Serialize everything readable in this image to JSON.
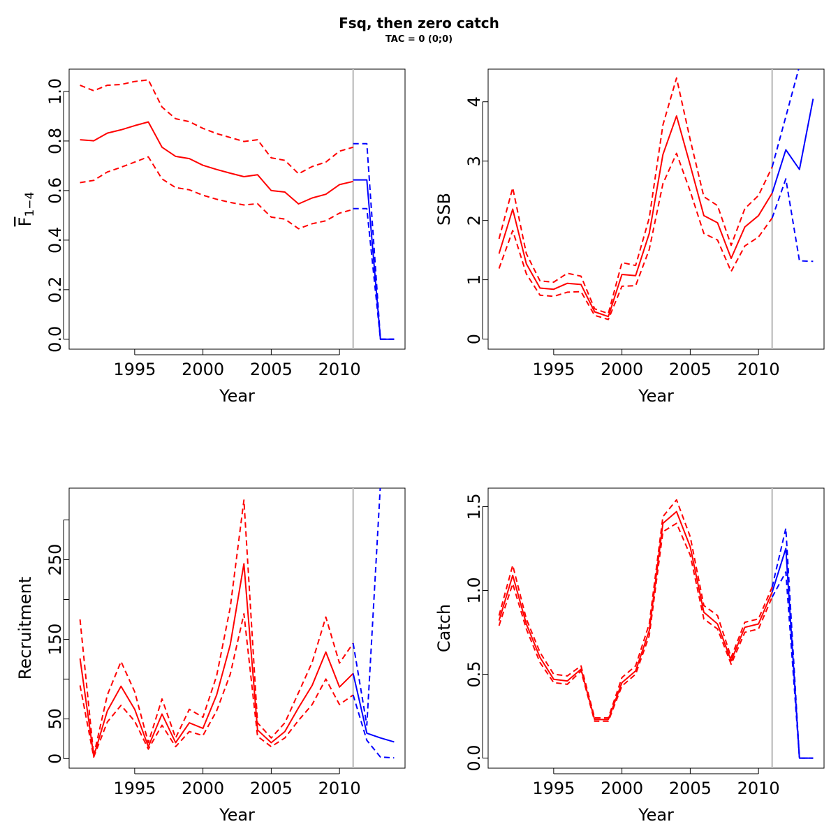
{
  "figure": {
    "title": "Fsq, then zero catch",
    "subtitle": "TAC = 0 (0;0)"
  },
  "colors": {
    "history": "#ff0000",
    "forecast": "#0000ff",
    "divider": "#bebebe"
  },
  "chart_data": [
    {
      "id": "fbar",
      "type": "line",
      "title": "",
      "xlabel": "Year",
      "ylabel": "F",
      "ylabel_sub": "1−4",
      "xlim": [
        1990.2,
        2014.8
      ],
      "ylim": [
        -0.04,
        1.09
      ],
      "xticks": [
        1995,
        2000,
        2005,
        2010
      ],
      "yticks": [
        0.0,
        0.2,
        0.4,
        0.6,
        0.8,
        1.0
      ],
      "ytick_labels": [
        "0.0",
        "0.2",
        "0.4",
        "0.6",
        "0.8",
        "1.0"
      ],
      "divider_x": 2011,
      "series": [
        {
          "role": "history",
          "style": "solid",
          "x": [
            1991,
            1992,
            1993,
            1994,
            1995,
            1996,
            1997,
            1998,
            1999,
            2000,
            2001,
            2002,
            2003,
            2004,
            2005,
            2006,
            2007,
            2008,
            2009,
            2010,
            2011
          ],
          "values": [
            0.805,
            0.801,
            0.832,
            0.845,
            0.862,
            0.877,
            0.775,
            0.738,
            0.729,
            0.702,
            0.685,
            0.67,
            0.656,
            0.664,
            0.6,
            0.594,
            0.546,
            0.57,
            0.585,
            0.624,
            0.637
          ]
        },
        {
          "role": "history",
          "style": "dashed",
          "x": [
            1991,
            1992,
            1993,
            1994,
            1995,
            1996,
            1997,
            1998,
            1999,
            2000,
            2001,
            2002,
            2003,
            2004,
            2005,
            2006,
            2007,
            2008,
            2009,
            2010,
            2011
          ],
          "values": [
            1.025,
            1.003,
            1.025,
            1.028,
            1.04,
            1.047,
            0.937,
            0.89,
            0.878,
            0.851,
            0.83,
            0.814,
            0.798,
            0.805,
            0.732,
            0.722,
            0.668,
            0.697,
            0.715,
            0.759,
            0.775
          ]
        },
        {
          "role": "history",
          "style": "dashed",
          "x": [
            1991,
            1992,
            1993,
            1994,
            1995,
            1996,
            1997,
            1998,
            1999,
            2000,
            2001,
            2002,
            2003,
            2004,
            2005,
            2006,
            2007,
            2008,
            2009,
            2010,
            2011
          ],
          "values": [
            0.632,
            0.641,
            0.675,
            0.694,
            0.715,
            0.736,
            0.647,
            0.612,
            0.603,
            0.581,
            0.565,
            0.552,
            0.542,
            0.547,
            0.493,
            0.485,
            0.446,
            0.466,
            0.478,
            0.509,
            0.524
          ]
        },
        {
          "role": "forecast",
          "style": "solid",
          "x": [
            2011,
            2012,
            2013,
            2014
          ],
          "values": [
            0.643,
            0.643,
            0.0,
            0.0
          ]
        },
        {
          "role": "forecast",
          "style": "dashed",
          "x": [
            2011,
            2012,
            2013,
            2014
          ],
          "values": [
            0.789,
            0.789,
            0.0,
            0.0
          ]
        },
        {
          "role": "forecast",
          "style": "dashed",
          "x": [
            2011,
            2012,
            2013,
            2014
          ],
          "values": [
            0.527,
            0.527,
            0.0,
            0.0
          ]
        }
      ]
    },
    {
      "id": "ssb",
      "type": "line",
      "title": "",
      "xlabel": "Year",
      "ylabel": "SSB",
      "xlim": [
        1990.2,
        2014.8
      ],
      "ylim": [
        -0.17,
        4.55
      ],
      "xticks": [
        1995,
        2000,
        2005,
        2010
      ],
      "yticks": [
        0,
        1,
        2,
        3,
        4
      ],
      "ytick_labels": [
        "0",
        "1",
        "2",
        "3",
        "4"
      ],
      "divider_x": 2011,
      "series": [
        {
          "role": "history",
          "style": "solid",
          "x": [
            1991,
            1992,
            1993,
            1994,
            1995,
            1996,
            1997,
            1998,
            1999,
            2000,
            2001,
            2002,
            2003,
            2004,
            2005,
            2006,
            2007,
            2008,
            2009,
            2010,
            2011
          ],
          "values": [
            1.44,
            2.19,
            1.27,
            0.86,
            0.84,
            0.94,
            0.92,
            0.46,
            0.38,
            1.09,
            1.07,
            1.78,
            3.11,
            3.76,
            2.93,
            2.08,
            1.96,
            1.36,
            1.89,
            2.08,
            2.46
          ]
        },
        {
          "role": "history",
          "style": "dashed",
          "x": [
            1991,
            1992,
            1993,
            1994,
            1995,
            1996,
            1997,
            1998,
            1999,
            2000,
            2001,
            2002,
            2003,
            2004,
            2005,
            2006,
            2007,
            2008,
            2009,
            2010,
            2011
          ],
          "values": [
            1.69,
            2.55,
            1.44,
            0.98,
            0.96,
            1.11,
            1.06,
            0.51,
            0.43,
            1.29,
            1.24,
            2.04,
            3.61,
            4.4,
            3.36,
            2.4,
            2.25,
            1.58,
            2.2,
            2.42,
            2.9
          ]
        },
        {
          "role": "history",
          "style": "dashed",
          "x": [
            1991,
            1992,
            1993,
            1994,
            1995,
            1996,
            1997,
            1998,
            1999,
            2000,
            2001,
            2002,
            2003,
            2004,
            2005,
            2006,
            2007,
            2008,
            2009,
            2010,
            2011
          ],
          "values": [
            1.19,
            1.83,
            1.1,
            0.74,
            0.72,
            0.79,
            0.8,
            0.4,
            0.33,
            0.89,
            0.9,
            1.51,
            2.62,
            3.13,
            2.49,
            1.78,
            1.67,
            1.14,
            1.57,
            1.72,
            2.04
          ]
        },
        {
          "role": "forecast",
          "style": "solid",
          "x": [
            2011,
            2012,
            2013,
            2014
          ],
          "values": [
            2.46,
            3.19,
            2.86,
            4.05
          ]
        },
        {
          "role": "forecast",
          "style": "dashed",
          "x": [
            2011,
            2012,
            2013,
            2014
          ],
          "values": [
            2.9,
            3.75,
            4.6,
            4.6
          ]
        },
        {
          "role": "forecast",
          "style": "dashed",
          "x": [
            2011,
            2012,
            2013,
            2014
          ],
          "values": [
            2.04,
            2.7,
            1.32,
            1.31
          ]
        }
      ]
    },
    {
      "id": "recruitment",
      "type": "line",
      "title": "",
      "xlabel": "Year",
      "ylabel": "Recruitment",
      "xlim": [
        1990.2,
        2014.8
      ],
      "ylim": [
        -12,
        340
      ],
      "xticks": [
        1995,
        2000,
        2005,
        2010
      ],
      "yticks": [
        0,
        50,
        100,
        150,
        200,
        250,
        300
      ],
      "ytick_labels": [
        "0",
        "50",
        "",
        "150",
        "",
        "250",
        ""
      ],
      "divider_x": 2011,
      "series": [
        {
          "role": "history",
          "style": "solid",
          "x": [
            1991,
            1992,
            1993,
            1994,
            1995,
            1996,
            1997,
            1998,
            1999,
            2000,
            2001,
            2002,
            2003,
            2004,
            2005,
            2006,
            2007,
            2008,
            2009,
            2010,
            2011
          ],
          "values": [
            126,
            3,
            60,
            91,
            62,
            15,
            56,
            20,
            45,
            38,
            80,
            143,
            245,
            36,
            20,
            34,
            64,
            92,
            134,
            90,
            107
          ]
        },
        {
          "role": "history",
          "style": "dashed",
          "x": [
            1991,
            1992,
            1993,
            1994,
            1995,
            1996,
            1997,
            1998,
            1999,
            2000,
            2001,
            2002,
            2003,
            2004,
            2005,
            2006,
            2007,
            2008,
            2009,
            2010,
            2011
          ],
          "values": [
            175,
            4,
            80,
            122,
            84,
            20,
            75,
            26,
            62,
            52,
            104,
            190,
            325,
            45,
            26,
            45,
            83,
            121,
            178,
            120,
            145
          ]
        },
        {
          "role": "history",
          "style": "dashed",
          "x": [
            1991,
            1992,
            1993,
            1994,
            1995,
            1996,
            1997,
            1998,
            1999,
            2000,
            2001,
            2002,
            2003,
            2004,
            2005,
            2006,
            2007,
            2008,
            2009,
            2010,
            2011
          ],
          "values": [
            92,
            2,
            46,
            67,
            47,
            12,
            42,
            15,
            34,
            29,
            60,
            106,
            182,
            28,
            15,
            26,
            48,
            68,
            100,
            68,
            80
          ]
        },
        {
          "role": "forecast",
          "style": "solid",
          "x": [
            2011,
            2012,
            2013,
            2014
          ],
          "values": [
            107,
            32,
            26,
            21
          ]
        },
        {
          "role": "forecast",
          "style": "dashed",
          "x": [
            2011,
            2012,
            2013,
            2014
          ],
          "values": [
            145,
            42,
            345,
            345
          ]
        },
        {
          "role": "forecast",
          "style": "dashed",
          "x": [
            2011,
            2012,
            2013,
            2014
          ],
          "values": [
            80,
            23,
            2,
            1
          ]
        }
      ]
    },
    {
      "id": "catch",
      "type": "line",
      "title": "",
      "xlabel": "Year",
      "ylabel": "Catch",
      "xlim": [
        1990.2,
        2014.8
      ],
      "ylim": [
        -0.06,
        1.61
      ],
      "xticks": [
        1995,
        2000,
        2005,
        2010
      ],
      "yticks": [
        0.0,
        0.5,
        1.0,
        1.5
      ],
      "ytick_labels": [
        "0.0",
        "0.5",
        "1.0",
        "1.5"
      ],
      "divider_x": 2011,
      "series": [
        {
          "role": "history",
          "style": "solid",
          "x": [
            1991,
            1992,
            1993,
            1994,
            1995,
            1996,
            1997,
            1998,
            1999,
            2000,
            2001,
            2002,
            2003,
            2004,
            2005,
            2006,
            2007,
            2008,
            2009,
            2010,
            2011
          ],
          "values": [
            0.82,
            1.09,
            0.8,
            0.6,
            0.47,
            0.46,
            0.53,
            0.23,
            0.23,
            0.45,
            0.52,
            0.76,
            1.4,
            1.47,
            1.26,
            0.87,
            0.8,
            0.58,
            0.78,
            0.8,
            0.99
          ]
        },
        {
          "role": "history",
          "style": "dashed",
          "x": [
            1991,
            1992,
            1993,
            1994,
            1995,
            1996,
            1997,
            1998,
            1999,
            2000,
            2001,
            2002,
            2003,
            2004,
            2005,
            2006,
            2007,
            2008,
            2009,
            2010,
            2011
          ],
          "values": [
            0.85,
            1.15,
            0.83,
            0.63,
            0.5,
            0.49,
            0.55,
            0.24,
            0.24,
            0.48,
            0.55,
            0.8,
            1.44,
            1.54,
            1.32,
            0.91,
            0.85,
            0.6,
            0.81,
            0.83,
            1.02
          ]
        },
        {
          "role": "history",
          "style": "dashed",
          "x": [
            1991,
            1992,
            1993,
            1994,
            1995,
            1996,
            1997,
            1998,
            1999,
            2000,
            2001,
            2002,
            2003,
            2004,
            2005,
            2006,
            2007,
            2008,
            2009,
            2010,
            2011
          ],
          "values": [
            0.79,
            1.04,
            0.77,
            0.57,
            0.45,
            0.44,
            0.52,
            0.22,
            0.22,
            0.43,
            0.5,
            0.73,
            1.35,
            1.4,
            1.21,
            0.83,
            0.77,
            0.56,
            0.75,
            0.77,
            0.96
          ]
        },
        {
          "role": "forecast",
          "style": "solid",
          "x": [
            2011,
            2012,
            2013,
            2014
          ],
          "values": [
            0.99,
            1.25,
            0.0,
            0.0
          ]
        },
        {
          "role": "forecast",
          "style": "dashed",
          "x": [
            2011,
            2012,
            2013,
            2014
          ],
          "values": [
            1.02,
            1.37,
            0.0,
            0.0
          ]
        },
        {
          "role": "forecast",
          "style": "dashed",
          "x": [
            2011,
            2012,
            2013,
            2014
          ],
          "values": [
            0.96,
            1.11,
            0.0,
            0.0
          ]
        }
      ]
    }
  ]
}
